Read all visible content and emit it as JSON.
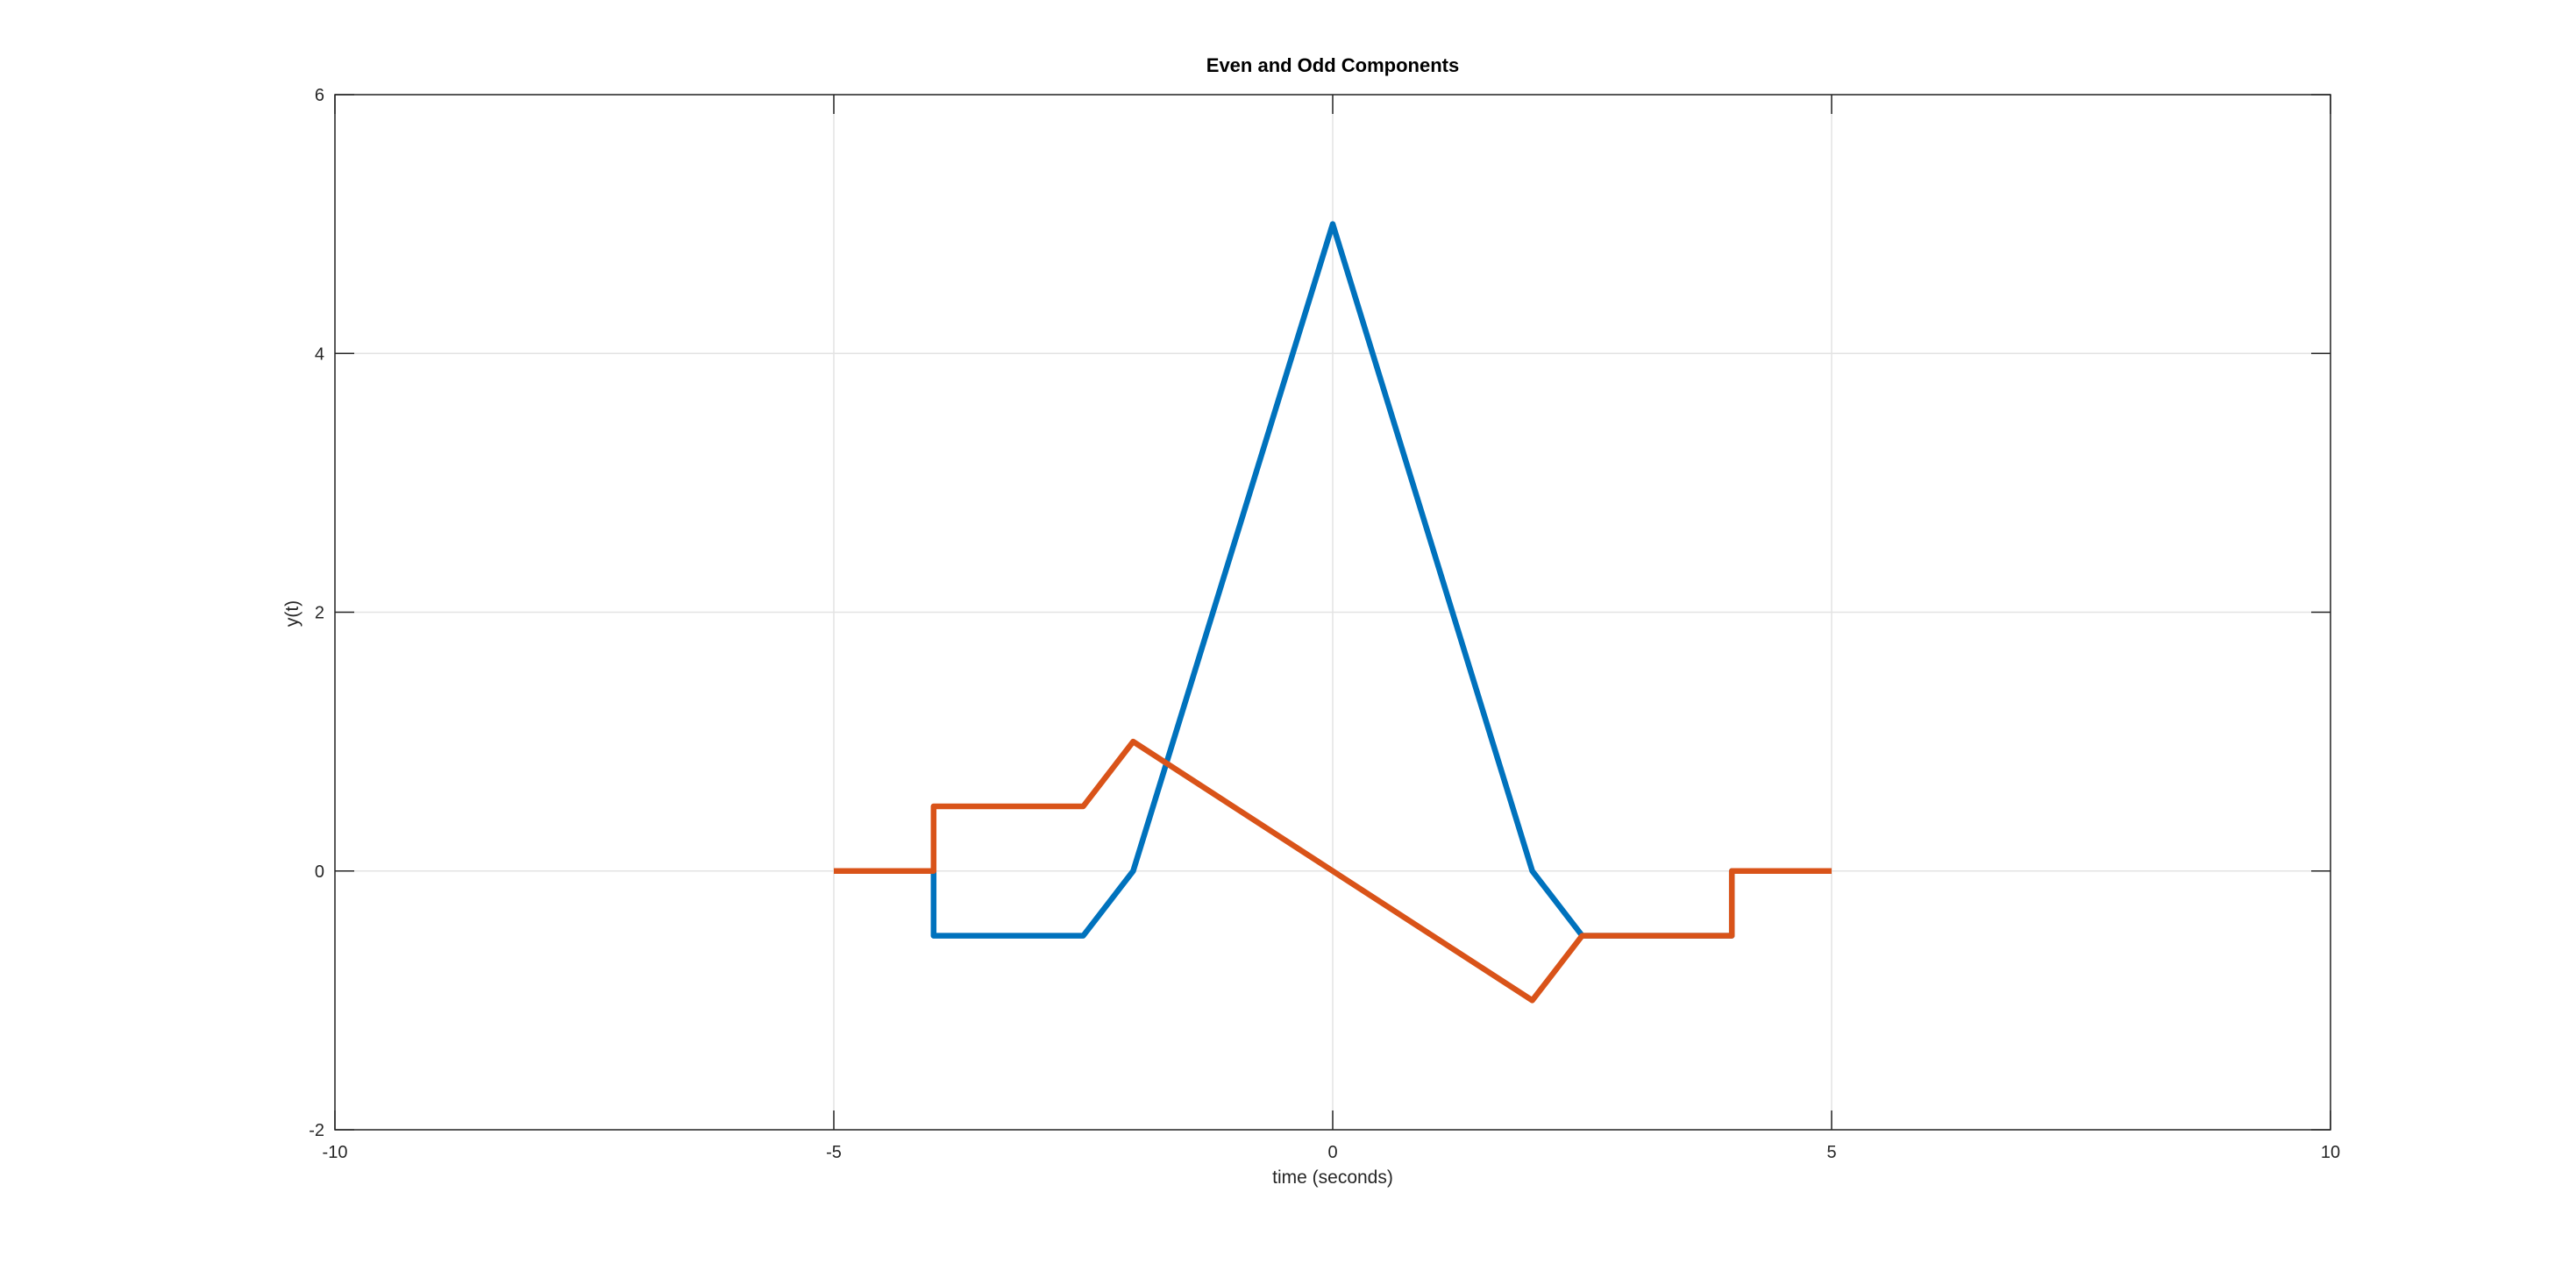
{
  "chart_data": {
    "type": "line",
    "title": "Even and Odd Components",
    "xlabel": "time (seconds)",
    "ylabel": "y(t)",
    "xlim": [
      -10,
      10
    ],
    "ylim": [
      -2,
      6
    ],
    "xticks": [
      -10,
      -5,
      0,
      5,
      10
    ],
    "yticks": [
      -2,
      0,
      2,
      4,
      6
    ],
    "grid": true,
    "legend": "none",
    "series": [
      {
        "color": "#0072BD",
        "x": [
          -5,
          -4,
          -4,
          -2.5,
          -2,
          0,
          2,
          2.5,
          4,
          4,
          5
        ],
        "y": [
          0,
          0,
          -0.5,
          -0.5,
          0,
          5,
          0,
          -0.5,
          -0.5,
          0,
          0
        ]
      },
      {
        "color": "#D95319",
        "x": [
          -5,
          -4,
          -4,
          -2.5,
          -2,
          2,
          2.5,
          4,
          4,
          5
        ],
        "y": [
          0,
          0,
          0.5,
          0.5,
          1,
          -1,
          -0.5,
          -0.5,
          0,
          0
        ]
      }
    ]
  }
}
